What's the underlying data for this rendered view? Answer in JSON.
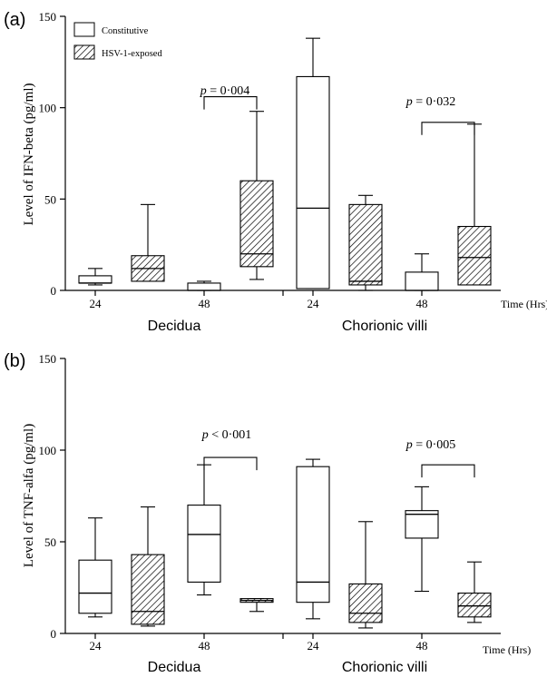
{
  "chart_data": [
    {
      "type": "box",
      "panel_label": "(a)",
      "ylabel": "Level of IFN-beta (pg/ml)",
      "xlabel": "Time (Hrs)",
      "ylim": [
        0,
        150
      ],
      "yticks": [
        "0",
        "50",
        "100",
        "150"
      ],
      "groups": [
        {
          "label": "Decidua",
          "time_labels": [
            "24",
            "48"
          ]
        },
        {
          "label": "Chorionic villi",
          "time_labels": [
            "24",
            "48"
          ]
        }
      ],
      "legend": [
        {
          "label": "Constitutive",
          "pattern": "open"
        },
        {
          "label": "HSV-1-exposed",
          "pattern": "hatched"
        }
      ],
      "legend_position": "top-left",
      "boxes": [
        {
          "group": "Decidua",
          "time": "24",
          "series": "Constitutive",
          "min": 3,
          "q1": 4,
          "median": 4,
          "q3": 8,
          "max": 12
        },
        {
          "group": "Decidua",
          "time": "24",
          "series": "HSV-1-exposed",
          "min": 5,
          "q1": 5,
          "median": 12,
          "q3": 19,
          "max": 47
        },
        {
          "group": "Decidua",
          "time": "48",
          "series": "Constitutive",
          "min": 0,
          "q1": 0,
          "median": 0,
          "q3": 4,
          "max": 5
        },
        {
          "group": "Decidua",
          "time": "48",
          "series": "HSV-1-exposed",
          "min": 6,
          "q1": 13,
          "median": 20,
          "q3": 60,
          "max": 98
        },
        {
          "group": "Chorionic villi",
          "time": "24",
          "series": "Constitutive",
          "min": 1,
          "q1": 1,
          "median": 45,
          "q3": 117,
          "max": 138
        },
        {
          "group": "Chorionic villi",
          "time": "24",
          "series": "HSV-1-exposed",
          "min": 0,
          "q1": 3,
          "median": 5,
          "q3": 47,
          "max": 52
        },
        {
          "group": "Chorionic villi",
          "time": "48",
          "series": "Constitutive",
          "min": 0,
          "q1": 0,
          "median": 0,
          "q3": 10,
          "max": 20
        },
        {
          "group": "Chorionic villi",
          "time": "48",
          "series": "HSV-1-exposed",
          "min": 3,
          "q1": 3,
          "median": 18,
          "q3": 35,
          "max": 91
        }
      ],
      "annotations": [
        {
          "p_symbol": "p",
          "p_text": " = 0·004",
          "between": [
            2,
            3
          ],
          "y": 106
        },
        {
          "p_symbol": "p",
          "p_text": " = 0·032",
          "between": [
            6,
            7
          ],
          "y": 92
        }
      ]
    },
    {
      "type": "box",
      "panel_label": "(b)",
      "ylabel": "Level of TNF-alfa (pg/ml)",
      "xlabel": "Time (Hrs)",
      "ylim": [
        0,
        150
      ],
      "yticks": [
        "0",
        "50",
        "100",
        "150"
      ],
      "groups": [
        {
          "label": "Decidua",
          "time_labels": [
            "24",
            "48"
          ]
        },
        {
          "label": "Chorionic villi",
          "time_labels": [
            "24",
            "48"
          ]
        }
      ],
      "boxes": [
        {
          "group": "Decidua",
          "time": "24",
          "series": "Constitutive",
          "min": 9,
          "q1": 11,
          "median": 22,
          "q3": 40,
          "max": 63
        },
        {
          "group": "Decidua",
          "time": "24",
          "series": "HSV-1-exposed",
          "min": 4,
          "q1": 5,
          "median": 12,
          "q3": 43,
          "max": 69
        },
        {
          "group": "Decidua",
          "time": "48",
          "series": "Constitutive",
          "min": 21,
          "q1": 28,
          "median": 54,
          "q3": 70,
          "max": 92
        },
        {
          "group": "Decidua",
          "time": "48",
          "series": "HSV-1-exposed",
          "min": 12,
          "q1": 17,
          "median": 18,
          "q3": 19,
          "max": 19
        },
        {
          "group": "Chorionic villi",
          "time": "24",
          "series": "Constitutive",
          "min": 8,
          "q1": 17,
          "median": 28,
          "q3": 91,
          "max": 95
        },
        {
          "group": "Chorionic villi",
          "time": "24",
          "series": "HSV-1-exposed",
          "min": 3,
          "q1": 6,
          "median": 11,
          "q3": 27,
          "max": 61
        },
        {
          "group": "Chorionic villi",
          "time": "48",
          "series": "Constitutive",
          "min": 23,
          "q1": 52,
          "median": 65,
          "q3": 67,
          "max": 80
        },
        {
          "group": "Chorionic villi",
          "time": "48",
          "series": "HSV-1-exposed",
          "min": 6,
          "q1": 9,
          "median": 15,
          "q3": 22,
          "max": 39
        }
      ],
      "annotations": [
        {
          "p_symbol": "p",
          "p_text": " < 0·001",
          "between": [
            2,
            3
          ],
          "y": 96
        },
        {
          "p_symbol": "p",
          "p_text": " = 0·005",
          "between": [
            6,
            7
          ],
          "y": 92
        }
      ]
    }
  ]
}
